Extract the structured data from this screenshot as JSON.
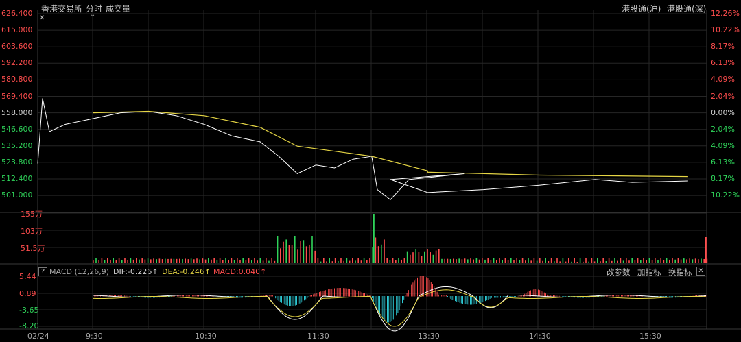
{
  "header": {
    "exchange_tab": "香港交易所",
    "period_tab": "分时",
    "volume_tab": "成交量",
    "sh_connect_tab": "港股通(沪)",
    "sz_connect_tab": "港股通(深)"
  },
  "price_axis_left": [
    "626.400",
    "615.000",
    "603.600",
    "592.200",
    "580.800",
    "569.400",
    "558.000",
    "546.600",
    "535.200",
    "523.800",
    "512.400",
    "501.000"
  ],
  "price_axis_right": [
    {
      "text": "12.26%",
      "tone": "red"
    },
    {
      "text": "10.22%",
      "tone": "red"
    },
    {
      "text": "8.17%",
      "tone": "red"
    },
    {
      "text": "6.13%",
      "tone": "red"
    },
    {
      "text": "4.09%",
      "tone": "red"
    },
    {
      "text": "2.04%",
      "tone": "red"
    },
    {
      "text": "0.00%",
      "tone": "white"
    },
    {
      "text": "2.04%",
      "tone": "green"
    },
    {
      "text": "4.09%",
      "tone": "green"
    },
    {
      "text": "6.13%",
      "tone": "green"
    },
    {
      "text": "8.17%",
      "tone": "green"
    },
    {
      "text": "10.22%",
      "tone": "green"
    }
  ],
  "volume_axis": [
    "155万",
    "103万",
    "51.5万"
  ],
  "macd": {
    "help_icon": "?",
    "name": "MACD (12,26,9)",
    "dif": "DIF:-0.226↑",
    "dea": "DEA:-0.246↑",
    "macd_value": "MACD:0.040↑",
    "buttons": [
      "改参数",
      "加指标",
      "换指标"
    ],
    "axis": [
      "5.44",
      "0.89",
      "-3.65",
      "-8.20"
    ]
  },
  "time_axis": {
    "date": "02/24",
    "ticks": [
      "9:30",
      "10:30",
      "11:30",
      "13:30",
      "14:30",
      "15:30"
    ]
  },
  "colors": {
    "price_line": "#ffffff",
    "avg_line": "#e6d645",
    "up": "#ff4d4d",
    "down": "#2fd45a",
    "dif_line": "#ffffff",
    "dea_line": "#e6d645",
    "macd_neg": "#2ec9d4",
    "grid": "#262626"
  },
  "chart_data": {
    "type": "line",
    "ylim": [
      501.0,
      626.4
    ],
    "prev_close": 558.0,
    "price_series": [
      {
        "x": "09:30",
        "y": 523
      },
      {
        "x": "09:32",
        "y": 568
      },
      {
        "x": "09:34",
        "y": 545
      },
      {
        "x": "09:38",
        "y": 550
      },
      {
        "x": "09:45",
        "y": 558
      },
      {
        "x": "10:00",
        "y": 559
      },
      {
        "x": "10:15",
        "y": 556
      },
      {
        "x": "10:30",
        "y": 550
      },
      {
        "x": "10:45",
        "y": 542
      },
      {
        "x": "11:00",
        "y": 538
      },
      {
        "x": "11:10",
        "y": 528
      },
      {
        "x": "11:20",
        "y": 516
      },
      {
        "x": "11:30",
        "y": 522
      },
      {
        "x": "11:40",
        "y": 520
      },
      {
        "x": "11:50",
        "y": 526
      },
      {
        "x": "12:00",
        "y": 528
      },
      {
        "x": "12:03",
        "y": 505
      },
      {
        "x": "12:10",
        "y": 498
      },
      {
        "x": "12:20",
        "y": 512
      },
      {
        "x": "12:35",
        "y": 514
      },
      {
        "x": "12:50",
        "y": 516
      },
      {
        "x": "13:10",
        "y": 512
      },
      {
        "x": "13:30",
        "y": 503
      },
      {
        "x": "14:00",
        "y": 505
      },
      {
        "x": "14:30",
        "y": 508
      },
      {
        "x": "15:00",
        "y": 512
      },
      {
        "x": "15:20",
        "y": 510
      },
      {
        "x": "15:50",
        "y": 511
      }
    ],
    "avg_series": [
      {
        "x": "09:30",
        "y": 558
      },
      {
        "x": "10:00",
        "y": 559
      },
      {
        "x": "10:30",
        "y": 556
      },
      {
        "x": "11:00",
        "y": 548
      },
      {
        "x": "11:20",
        "y": 535
      },
      {
        "x": "12:00",
        "y": 528
      },
      {
        "x": "12:30",
        "y": 518
      },
      {
        "x": "13:30",
        "y": 517
      },
      {
        "x": "14:30",
        "y": 515
      },
      {
        "x": "15:50",
        "y": 514
      }
    ],
    "volume_ylim": [
      0,
      1550000
    ],
    "macd_ylim": [
      -8.2,
      5.44
    ]
  }
}
